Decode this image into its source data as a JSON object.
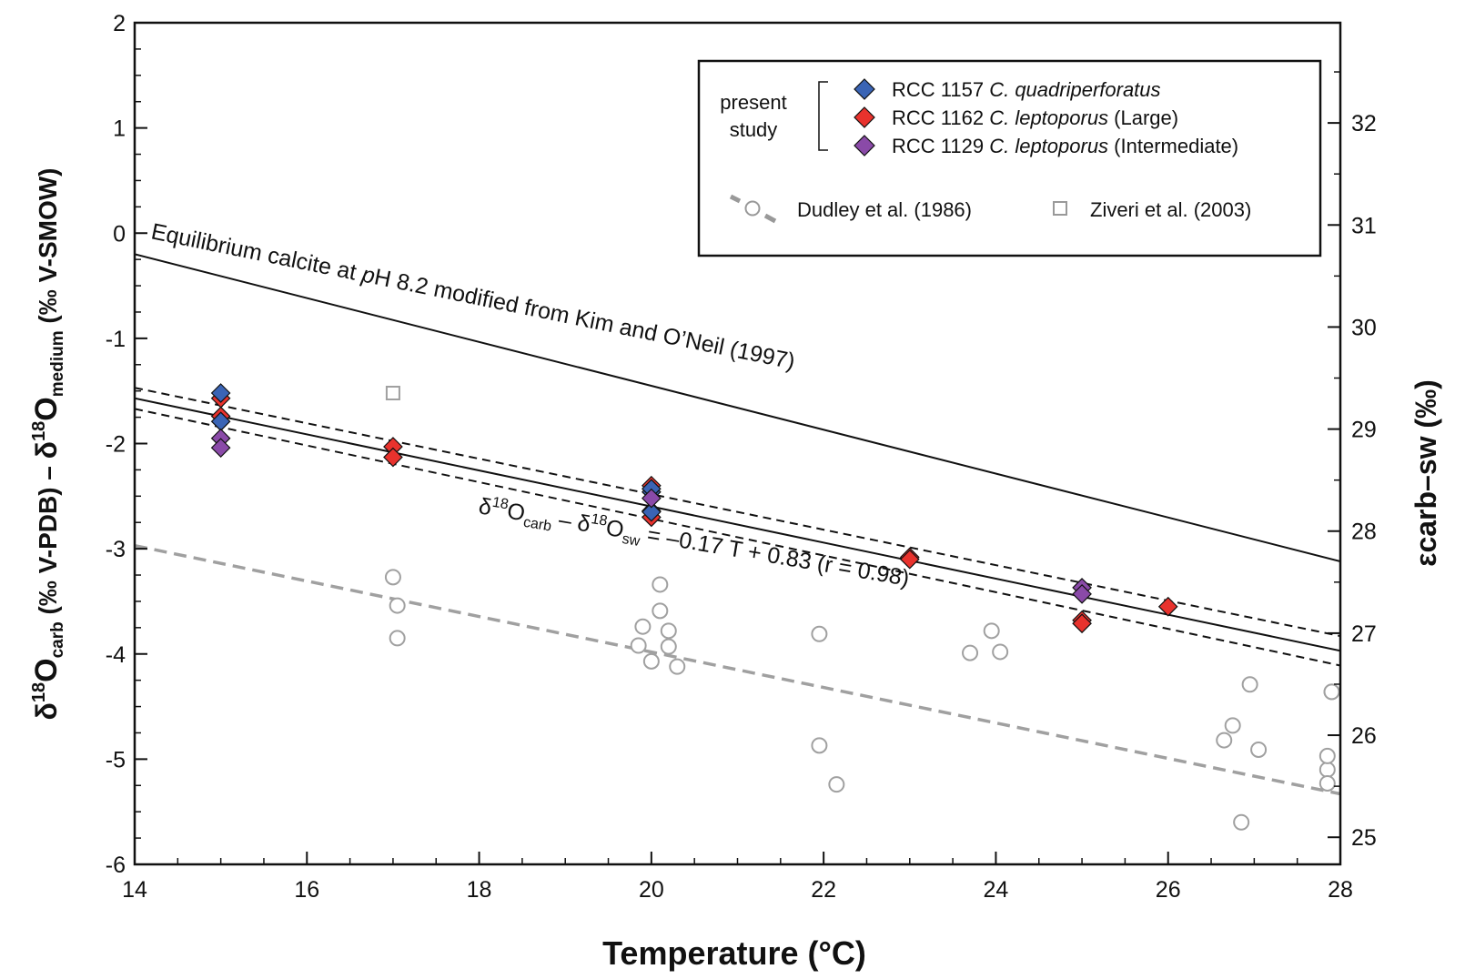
{
  "chart_data": {
    "type": "scatter",
    "xlabel": "Temperature (°C)",
    "ylabel_left_parts": {
      "d1": "δ",
      "sup1": "18",
      "o1": "O",
      "sub1": "carb",
      "mid": " (‰ V-PDB) – ",
      "d2": "δ",
      "sup2": "18",
      "o2": "O",
      "sub2": "medium",
      "tail": " (‰ V-SMOW)"
    },
    "ylabel_right": "εcarb–sw (‰)",
    "xlim": [
      14,
      28
    ],
    "ylim": [
      -6,
      2
    ],
    "ylim_right_ticks": [
      25,
      26,
      27,
      28,
      29,
      30,
      31,
      32
    ],
    "x_ticks": [
      "14",
      "16",
      "18",
      "20",
      "22",
      "24",
      "26",
      "28"
    ],
    "y_ticks": [
      "-6",
      "-5",
      "-4",
      "-3",
      "-2",
      "-1",
      "0",
      "1",
      "2"
    ],
    "y_right_tick_labels": [
      "25",
      "26",
      "27",
      "28",
      "29",
      "30",
      "31",
      "32"
    ],
    "legend": {
      "group_label_line1": "present",
      "group_label_line2": "study",
      "entries": [
        {
          "prefix": "RCC 1157 ",
          "italic": "C. quadriperforatus",
          "suffix": "",
          "color": "#3a64b5"
        },
        {
          "prefix": "RCC 1162 ",
          "italic": "C. leptoporus",
          "suffix": " (Large)",
          "color": "#e8322d"
        },
        {
          "prefix": "RCC 1129 ",
          "italic": "C. leptoporus",
          "suffix": " (Intermediate)",
          "color": "#8a4aa8"
        }
      ],
      "dudley_label": "Dudley et al. (1986)",
      "ziveri_label": "Ziveri et al. (2003)"
    },
    "equilibrium_label": {
      "pre": "Equilibrium calcite at ",
      "italic": "p",
      "post": "H 8.2 modified from Kim and O’Neil (1997)"
    },
    "equation_label": {
      "d": "δ",
      "sup": "18",
      "o": "O",
      "sub1": "carb",
      "minus": " – ",
      "d2": "δ",
      "sup2": "18",
      "o2": "O",
      "sub2": "sw",
      "rhs": " = –0.17 T + 0.83 (r = 0.98)"
    },
    "lines": {
      "equilibrium": {
        "x": [
          14,
          28
        ],
        "y": [
          -0.2,
          -3.12
        ]
      },
      "regression": {
        "x": [
          14,
          28
        ],
        "y": [
          -1.57,
          -3.97
        ]
      },
      "conf_upper": {
        "x": [
          14,
          28
        ],
        "y": [
          -1.47,
          -3.83
        ]
      },
      "conf_lower": {
        "x": [
          14,
          28
        ],
        "y": [
          -1.67,
          -4.11
        ]
      },
      "dudley_fit": {
        "x": [
          14,
          28
        ],
        "y": [
          -2.97,
          -5.33
        ]
      }
    },
    "series": [
      {
        "name": "RCC 1157 C. quadriperforatus",
        "color": "#3a64b5",
        "marker": "diamond",
        "x": [
          15,
          15,
          20,
          20,
          20
        ],
        "y": [
          -1.52,
          -1.79,
          -2.46,
          -2.43,
          -2.65
        ]
      },
      {
        "name": "RCC 1162 C. leptoporus (Large)",
        "color": "#e8322d",
        "marker": "diamond",
        "x": [
          15,
          15,
          17,
          17,
          20,
          20,
          20,
          23,
          23,
          25,
          25,
          26
        ],
        "y": [
          -1.57,
          -1.74,
          -2.03,
          -2.13,
          -2.4,
          -2.64,
          -2.7,
          -3.08,
          -3.1,
          -3.68,
          -3.71,
          -3.55
        ]
      },
      {
        "name": "RCC 1129 C. leptoporus (Intermediate)",
        "color": "#8a4aa8",
        "marker": "diamond",
        "x": [
          15,
          15,
          20,
          25,
          25
        ],
        "y": [
          -1.95,
          -2.04,
          -2.52,
          -3.37,
          -3.43
        ]
      },
      {
        "name": "Dudley et al. (1986)",
        "color": "#a0a0a0",
        "marker": "circle-open",
        "x": [
          17.0,
          17.05,
          17.05,
          19.9,
          19.85,
          20.0,
          20.1,
          20.1,
          20.2,
          20.2,
          20.3,
          21.95,
          21.95,
          22.15,
          23.7,
          23.95,
          24.05,
          26.65,
          26.75,
          26.85,
          26.95,
          27.05,
          27.85,
          27.85,
          27.85,
          27.9,
          27.9
        ],
        "y": [
          -3.27,
          -3.54,
          -3.85,
          -3.74,
          -3.92,
          -4.07,
          -3.34,
          -3.59,
          -3.78,
          -3.93,
          -4.12,
          -3.81,
          -4.87,
          -5.24,
          -3.99,
          -3.78,
          -3.98,
          -4.82,
          -4.68,
          -5.6,
          -4.29,
          -4.91,
          -5.1,
          -5.23,
          -4.97,
          -4.36,
          -4.36
        ]
      },
      {
        "name": "Ziveri et al. (2003)",
        "color": "#a0a0a0",
        "marker": "square-open",
        "x": [
          17.0
        ],
        "y": [
          -1.52
        ]
      }
    ]
  }
}
